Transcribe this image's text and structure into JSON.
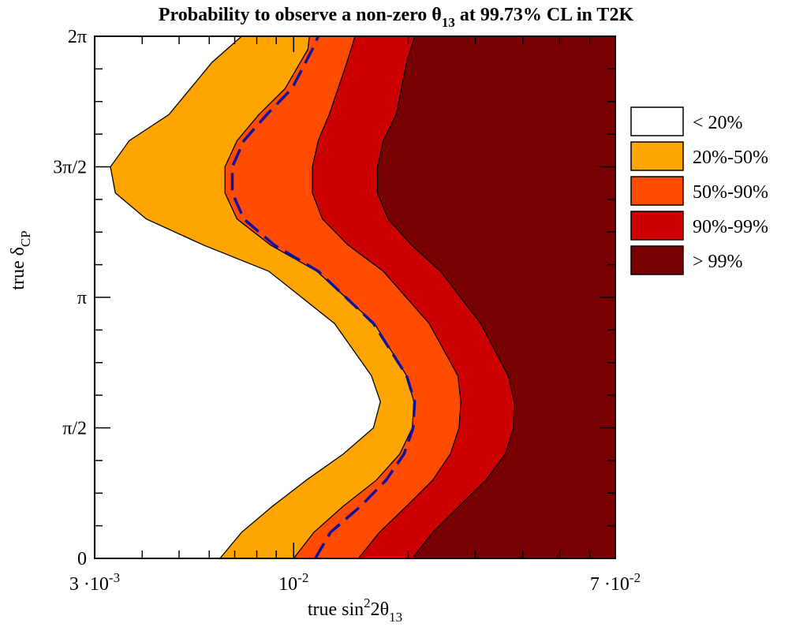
{
  "chart_data": {
    "type": "contour",
    "title": {
      "main": "Probability to observe a non-zero θ",
      "sub": "13",
      "tail": " at 99.73% CL in T2K"
    },
    "xlabel": {
      "prefix": "true  sin",
      "sup": "2",
      "mid": "2θ",
      "sub": "13"
    },
    "ylabel": {
      "prefix": "true  δ",
      "sub": "CP"
    },
    "x_scale": "log",
    "xlim": [
      0.003,
      0.07
    ],
    "ylim": [
      0,
      6.283
    ],
    "x_ticks": [
      {
        "value": 0.003,
        "base": "3 ·10",
        "exp": "-3"
      },
      {
        "value": 0.01,
        "base": "10",
        "exp": "-2"
      },
      {
        "value": 0.07,
        "base": "7 ·10",
        "exp": "-2"
      }
    ],
    "y_ticks": [
      {
        "value": 0,
        "label": "0"
      },
      {
        "value": 1.5708,
        "label": "π/2"
      },
      {
        "value": 3.1416,
        "label": "π"
      },
      {
        "value": 4.7124,
        "label": "3π/2"
      },
      {
        "value": 6.2832,
        "label": "2π"
      }
    ],
    "legend": {
      "position": "right",
      "entries": [
        {
          "label": "< 20%",
          "color": "#ffffff"
        },
        {
          "label": "20%-50%",
          "color": "#ffa500"
        },
        {
          "label": "50%-90%",
          "color": "#ff4c00"
        },
        {
          "label": "90%-99%",
          "color": "#cc0000"
        },
        {
          "label": "> 99%",
          "color": "#780000"
        }
      ]
    },
    "levels": [
      {
        "name": "20%",
        "fill": "#ffa500",
        "x": [
          0.0064,
          0.0073,
          0.0088,
          0.0108,
          0.0135,
          0.0162,
          0.0169,
          0.016,
          0.0128,
          0.0086,
          0.0058,
          0.0041,
          0.0034,
          0.0033,
          0.0037,
          0.0047,
          0.0061,
          0.0073
        ],
        "y": [
          0,
          0.314,
          0.628,
          0.942,
          1.257,
          1.571,
          1.885,
          2.199,
          2.827,
          3.456,
          3.77,
          4.084,
          4.398,
          4.712,
          5.027,
          5.341,
          5.969,
          6.283
        ]
      },
      {
        "name": "50%",
        "fill": "#ff4c00",
        "x": [
          0.01,
          0.0113,
          0.0135,
          0.0165,
          0.019,
          0.0205,
          0.0207,
          0.0198,
          0.0163,
          0.0115,
          0.0087,
          0.0071,
          0.0066,
          0.0066,
          0.0071,
          0.0081,
          0.0095,
          0.0109,
          0.011
        ],
        "y": [
          0,
          0.314,
          0.628,
          0.942,
          1.257,
          1.571,
          1.885,
          2.199,
          2.827,
          3.456,
          3.77,
          4.084,
          4.398,
          4.712,
          5.027,
          5.341,
          5.655,
          6.126,
          6.283
        ]
      },
      {
        "name": "90%",
        "fill": "#cc0000",
        "x": [
          0.0148,
          0.0168,
          0.0198,
          0.0232,
          0.0258,
          0.0272,
          0.0275,
          0.027,
          0.0227,
          0.0172,
          0.0139,
          0.0119,
          0.0112,
          0.0112,
          0.0116,
          0.0124,
          0.0138,
          0.0145
        ],
        "y": [
          0,
          0.314,
          0.628,
          0.942,
          1.257,
          1.571,
          1.885,
          2.199,
          2.827,
          3.456,
          3.77,
          4.084,
          4.398,
          4.712,
          5.027,
          5.341,
          5.969,
          6.283
        ]
      },
      {
        "name": "99%",
        "fill": "#780000",
        "x": [
          0.0205,
          0.0232,
          0.0272,
          0.032,
          0.036,
          0.0378,
          0.038,
          0.0366,
          0.031,
          0.0243,
          0.0204,
          0.0177,
          0.0166,
          0.0166,
          0.0172,
          0.0186,
          0.0198,
          0.0208
        ],
        "y": [
          0,
          0.314,
          0.628,
          0.942,
          1.257,
          1.571,
          1.885,
          2.199,
          2.827,
          3.456,
          3.77,
          4.084,
          4.398,
          4.712,
          5.027,
          5.341,
          5.969,
          6.283
        ]
      }
    ],
    "dashed_line": {
      "color": "#1010a0",
      "x": [
        0.0114,
        0.0125,
        0.015,
        0.0175,
        0.0195,
        0.0206,
        0.0208,
        0.0198,
        0.0162,
        0.0116,
        0.0089,
        0.0074,
        0.0069,
        0.0069,
        0.0074,
        0.0085,
        0.0099,
        0.0112,
        0.0116
      ],
      "y": [
        0,
        0.314,
        0.628,
        0.942,
        1.257,
        1.571,
        1.885,
        2.199,
        2.827,
        3.456,
        3.77,
        4.084,
        4.398,
        4.712,
        5.027,
        5.341,
        5.655,
        6.126,
        6.283
      ]
    }
  }
}
